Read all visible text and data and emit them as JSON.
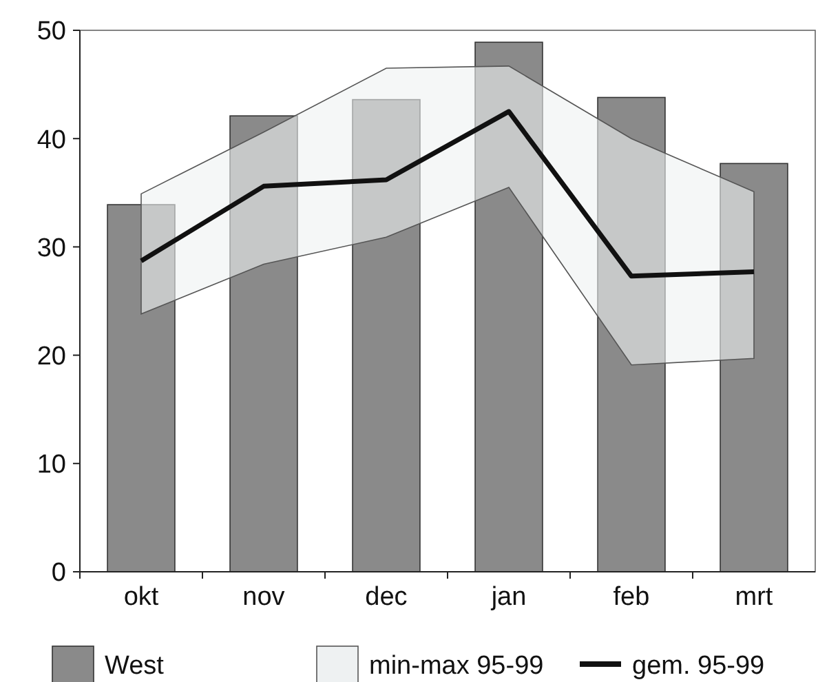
{
  "chart_data": {
    "type": "bar",
    "categories": [
      "okt",
      "nov",
      "dec",
      "jan",
      "feb",
      "mrt"
    ],
    "ylim": [
      0,
      50
    ],
    "yticks": [
      0,
      10,
      20,
      30,
      40,
      50
    ],
    "grid": false,
    "legend": "bottom",
    "annotations": [
      "min-max 95-99"
    ],
    "series": [
      {
        "name": "West",
        "color": "#8a8a8a",
        "values": [
          33.9,
          42.1,
          43.6,
          48.9,
          43.8,
          37.7
        ]
      },
      {
        "name": "gem. 95-99",
        "type": "line",
        "color": "#111111",
        "values": [
          28.7,
          35.6,
          36.2,
          42.5,
          27.3,
          27.7
        ],
        "lower": [
          23.8,
          28.4,
          30.9,
          35.5,
          19.1,
          19.7
        ],
        "upper": [
          34.9,
          40.6,
          46.5,
          46.7,
          40.0,
          35.1
        ]
      }
    ]
  }
}
